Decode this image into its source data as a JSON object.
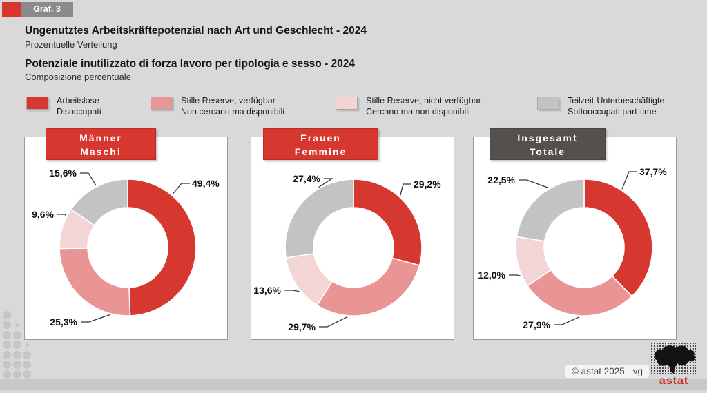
{
  "badge": {
    "label": "Graf. 3"
  },
  "header": {
    "title_de": "Ungenutztes Arbeitskräftepotenzial nach Art und Geschlecht - 2024",
    "subtitle_de": "Prozentuelle Verteilung",
    "title_it": "Potenziale inutilizzato di forza lavoro per tipologia e sesso - 2024",
    "subtitle_it": "Composizione percentuale"
  },
  "legend": {
    "items": [
      {
        "label_de": "Arbeitslose",
        "label_it": "Disoccupati",
        "color": "#d6372f"
      },
      {
        "label_de": "Stille Reserve, verfügbar",
        "label_it": "Non cercano ma disponibili",
        "color": "#ea9595"
      },
      {
        "label_de": "Stille Reserve, nicht verfügbar",
        "label_it": "Cercano ma non disponibili",
        "color": "#f3d5d5"
      },
      {
        "label_de": "Teilzeit-Unterbeschäftigte",
        "label_it": "Sottooccupati part-time",
        "color": "#c3c3c3"
      }
    ]
  },
  "chart_data": [
    {
      "type": "pie",
      "group_de": "Männer",
      "group_it": "Maschi",
      "banner_color": "red",
      "categories": [
        "Arbeitslose / Disoccupati",
        "Stille Reserve, verfügbar / Non cercano ma disponibili",
        "Stille Reserve, nicht verfügbar / Cercano ma non disponibili",
        "Teilzeit-Unterbeschäftigte / Sottooccupati part-time"
      ],
      "values": [
        49.4,
        25.3,
        9.6,
        15.6
      ],
      "value_labels": [
        "49,4%",
        "25,3%",
        "9,6%",
        "15,6%"
      ]
    },
    {
      "type": "pie",
      "group_de": "Frauen",
      "group_it": "Femmine",
      "banner_color": "red",
      "categories": [
        "Arbeitslose / Disoccupati",
        "Stille Reserve, verfügbar / Non cercano ma disponibili",
        "Stille Reserve, nicht verfügbar / Cercano ma non disponibili",
        "Teilzeit-Unterbeschäftigte / Sottooccupati part-time"
      ],
      "values": [
        29.2,
        29.7,
        13.6,
        27.4
      ],
      "value_labels": [
        "29,2%",
        "29,7%",
        "13,6%",
        "27,4%"
      ]
    },
    {
      "type": "pie",
      "group_de": "Insgesamt",
      "group_it": "Totale",
      "banner_color": "dark",
      "categories": [
        "Arbeitslose / Disoccupati",
        "Stille Reserve, verfügbar / Non cercano ma disponibili",
        "Stille Reserve, nicht verfügbar / Cercano ma non disponibili",
        "Teilzeit-Unterbeschäftigte / Sottooccupati part-time"
      ],
      "values": [
        37.7,
        27.9,
        12.0,
        22.5
      ],
      "value_labels": [
        "37,7%",
        "27,9%",
        "12,0%",
        "22,5%"
      ]
    }
  ],
  "footer": {
    "copyright": "© astat 2025 - vg",
    "logo_text": "astat"
  },
  "colors": {
    "red": "#d6372f",
    "pink": "#ea9595",
    "light_pink": "#f3d5d5",
    "gray": "#c3c3c3",
    "banner_dark": "#56504c",
    "background": "#d9d9d9"
  }
}
